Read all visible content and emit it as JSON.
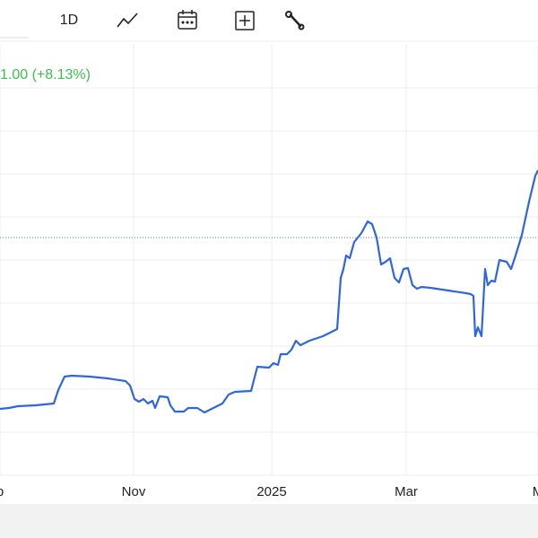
{
  "toolbar": {
    "interval": "1D"
  },
  "chart_data": {
    "type": "line",
    "change_label": "1.00 (+8.13%)",
    "x": [
      0,
      10,
      20,
      40,
      60,
      65,
      72,
      80,
      100,
      120,
      140,
      145,
      150,
      155,
      160,
      165,
      170,
      173,
      178,
      187,
      190,
      195,
      205,
      210,
      220,
      228,
      238,
      248,
      255,
      262,
      280,
      287,
      300,
      305,
      310,
      313,
      320,
      325,
      330,
      335,
      345,
      360,
      370,
      376,
      380,
      383,
      386,
      390,
      395,
      403,
      410,
      415,
      420,
      425,
      430,
      435,
      440,
      445,
      450,
      455,
      460,
      465,
      470,
      480,
      500,
      520,
      525,
      528,
      530,
      533,
      537,
      541,
      544,
      548,
      552,
      557,
      565,
      570,
      575,
      582,
      590,
      597,
      600
    ],
    "series": [
      {
        "color": "#2f66e0",
        "values": [
          74,
          75,
          77,
          78,
          80,
          95,
          110,
          111,
          110,
          108,
          105,
          100,
          85,
          82,
          85,
          80,
          83,
          75,
          88,
          87,
          78,
          71,
          71,
          75,
          75,
          70,
          75,
          80,
          90,
          93,
          94,
          121,
          120,
          125,
          123,
          135,
          135,
          140,
          150,
          145,
          150,
          155,
          160,
          163,
          220,
          230,
          245,
          242,
          260,
          270,
          283,
          280,
          265,
          235,
          238,
          242,
          220,
          215,
          230,
          231,
          212,
          208,
          210,
          209,
          206,
          203,
          202,
          200,
          155,
          165,
          155,
          230,
          212,
          217,
          216,
          240,
          238,
          230,
          245,
          268,
          305,
          334,
          340
        ]
      }
    ],
    "xlim": [
      0,
      600
    ],
    "ylim": [
      0,
      480
    ],
    "xticks": [
      {
        "value": 0,
        "label": "p"
      },
      {
        "value": 149,
        "label": "Nov"
      },
      {
        "value": 303,
        "label": "2025"
      },
      {
        "value": 453,
        "label": "Mar"
      },
      {
        "value": 600,
        "label": "M"
      }
    ],
    "yticks": [
      48,
      96,
      144,
      192,
      240,
      288,
      336,
      384,
      432
    ],
    "reference_line": 265,
    "grid": true
  }
}
